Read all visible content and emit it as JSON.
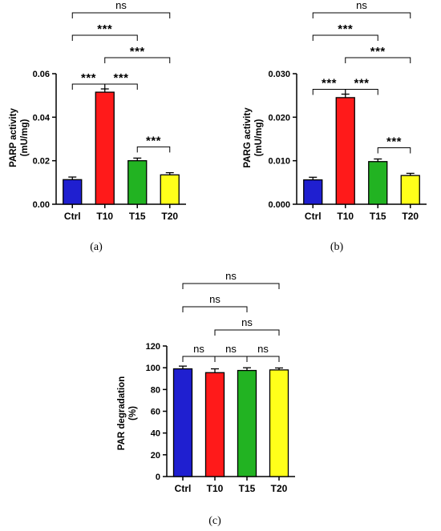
{
  "chart_data": [
    {
      "type": "bar",
      "panel_label": "(a)",
      "categories": [
        "Ctrl",
        "T10",
        "T15",
        "T20"
      ],
      "values": [
        0.0113,
        0.0515,
        0.02,
        0.0135
      ],
      "errors": [
        0.0012,
        0.0015,
        0.0012,
        0.001
      ],
      "colors": [
        "#1f1fd0",
        "#ff1a1a",
        "#22b322",
        "#ffff1a"
      ],
      "ylabel": "PARP activity (mU/mg)",
      "ylabel_lines": [
        "PARP activity",
        "(mU/mg)"
      ],
      "ylim": [
        0,
        0.06
      ],
      "yticks": [
        0.0,
        0.02,
        0.04,
        0.06
      ],
      "ytick_labels": [
        "0.00",
        "0.02",
        "0.04",
        "0.06"
      ],
      "annotations": [
        {
          "from": "Ctrl",
          "to": "T10",
          "label": "***"
        },
        {
          "from": "T10",
          "to": "T15",
          "label": "***"
        },
        {
          "from": "T15",
          "to": "T20",
          "label": "***"
        },
        {
          "from": "T10",
          "to": "T20",
          "label": "***"
        },
        {
          "from": "Ctrl",
          "to": "T15",
          "label": "***"
        },
        {
          "from": "Ctrl",
          "to": "T20",
          "label": "ns"
        }
      ]
    },
    {
      "type": "bar",
      "panel_label": "(b)",
      "categories": [
        "Ctrl",
        "T10",
        "T15",
        "T20"
      ],
      "values": [
        0.0056,
        0.0245,
        0.0098,
        0.0066
      ],
      "errors": [
        0.0006,
        0.0008,
        0.0006,
        0.0005
      ],
      "colors": [
        "#1f1fd0",
        "#ff1a1a",
        "#22b322",
        "#ffff1a"
      ],
      "ylabel": "PARG activity (mU/mg)",
      "ylabel_lines": [
        "PARG activity",
        "(mU/mg)"
      ],
      "ylim": [
        0,
        0.03
      ],
      "yticks": [
        0.0,
        0.01,
        0.02,
        0.03
      ],
      "ytick_labels": [
        "0.000",
        "0.010",
        "0.020",
        "0.030"
      ],
      "annotations": [
        {
          "from": "Ctrl",
          "to": "T10",
          "label": "***"
        },
        {
          "from": "T10",
          "to": "T15",
          "label": "***"
        },
        {
          "from": "T15",
          "to": "T20",
          "label": "***"
        },
        {
          "from": "T10",
          "to": "T20",
          "label": "***"
        },
        {
          "from": "Ctrl",
          "to": "T15",
          "label": "***"
        },
        {
          "from": "Ctrl",
          "to": "T20",
          "label": "ns"
        }
      ]
    },
    {
      "type": "bar",
      "panel_label": "(c)",
      "categories": [
        "Ctrl",
        "T10",
        "T15",
        "T20"
      ],
      "values": [
        99,
        95.5,
        97.5,
        98
      ],
      "errors": [
        2.5,
        3.5,
        2.5,
        1.8
      ],
      "colors": [
        "#1f1fd0",
        "#ff1a1a",
        "#22b322",
        "#ffff1a"
      ],
      "ylabel": "PAR degradation (%)",
      "ylabel_lines": [
        "PAR degradation",
        "(%)"
      ],
      "ylim": [
        0,
        120
      ],
      "yticks": [
        0,
        20,
        40,
        60,
        80,
        100,
        120
      ],
      "ytick_labels": [
        "0",
        "20",
        "40",
        "60",
        "80",
        "100",
        "120"
      ],
      "annotations": [
        {
          "from": "Ctrl",
          "to": "T10",
          "label": "ns"
        },
        {
          "from": "T10",
          "to": "T15",
          "label": "ns"
        },
        {
          "from": "T15",
          "to": "T20",
          "label": "ns"
        },
        {
          "from": "Ctrl",
          "to": "T15",
          "label": "ns"
        },
        {
          "from": "T10",
          "to": "T20",
          "label": "ns"
        },
        {
          "from": "Ctrl",
          "to": "T20",
          "label": "ns"
        }
      ]
    }
  ]
}
